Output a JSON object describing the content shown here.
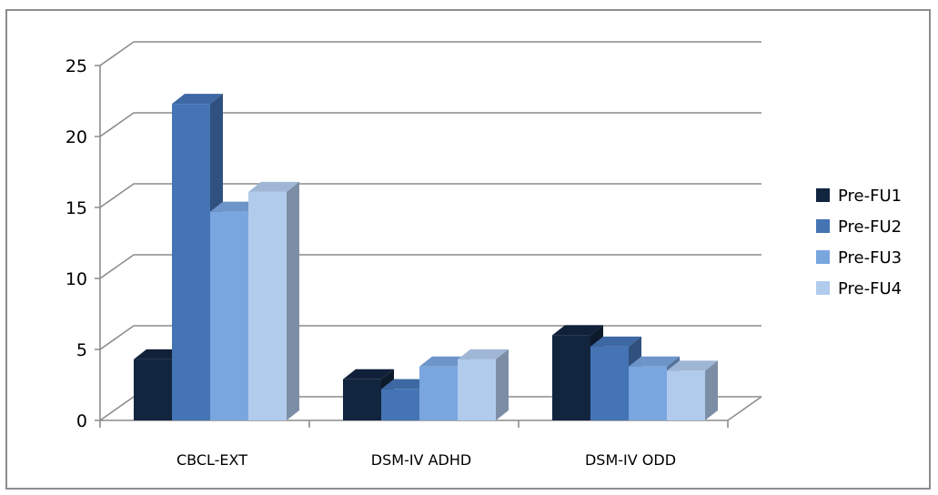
{
  "chart_data": {
    "type": "bar",
    "title": "",
    "xlabel": "",
    "ylabel": "",
    "ylim": [
      0,
      25
    ],
    "yticks": [
      0,
      5,
      10,
      15,
      20,
      25
    ],
    "grid": true,
    "legend_position": "right",
    "categories": [
      "CBCL-EXT",
      "DSM-IV ADHD",
      "DSM-IV ODD"
    ],
    "series": [
      {
        "name": "Pre-FU1",
        "color": "#12253f",
        "values": [
          4.3,
          2.9,
          6.0
        ]
      },
      {
        "name": "Pre-FU2",
        "color": "#4574b5",
        "values": [
          22.3,
          2.2,
          5.2
        ]
      },
      {
        "name": "Pre-FU3",
        "color": "#7aa6df",
        "values": [
          14.7,
          3.8,
          3.8
        ]
      },
      {
        "name": "Pre-FU4",
        "color": "#b1cbed",
        "values": [
          16.1,
          4.3,
          3.5
        ]
      }
    ]
  }
}
